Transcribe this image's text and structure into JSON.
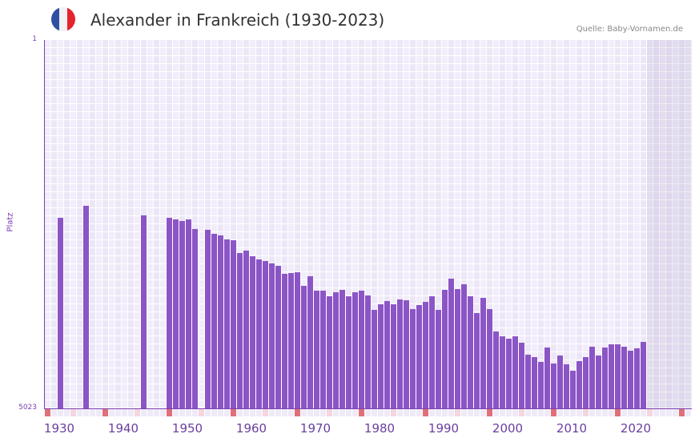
{
  "header": {
    "title": "Alexander in Frankreich (1930-2023)",
    "source": "Quelle: Baby-Vornamen.de",
    "flag_colors": [
      "#2f4fa2",
      "#f1f1f6",
      "#e5232d"
    ]
  },
  "colors": {
    "bar": "#8b55c6",
    "axis": "#7a3fb0",
    "grid_a": "#f1edfa",
    "grid_b": "#ece6f7",
    "strip_decade": "#e07078",
    "strip_mid": "#f4d6de",
    "strip_base": "#efeaf8"
  },
  "chart_data": {
    "type": "bar",
    "title": "Alexander in Frankreich (1930-2023)",
    "xlabel": "",
    "ylabel": "Platz",
    "y_inverted": true,
    "ylim": [
      1,
      5023
    ],
    "y_ticks": [
      "1",
      "5023"
    ],
    "x_ticks": [
      "1930",
      "1940",
      "1950",
      "1960",
      "1970",
      "1980",
      "1990",
      "2000",
      "2010",
      "2020"
    ],
    "x_range": [
      1930,
      2030
    ],
    "shaded_from": 2024,
    "grid": true,
    "legend": null,
    "categories": [
      1930,
      1931,
      1932,
      1933,
      1934,
      1935,
      1936,
      1937,
      1938,
      1939,
      1940,
      1941,
      1942,
      1943,
      1944,
      1945,
      1946,
      1947,
      1948,
      1949,
      1950,
      1951,
      1952,
      1953,
      1954,
      1955,
      1956,
      1957,
      1958,
      1959,
      1960,
      1961,
      1962,
      1963,
      1964,
      1965,
      1966,
      1967,
      1968,
      1969,
      1970,
      1971,
      1972,
      1973,
      1974,
      1975,
      1976,
      1977,
      1978,
      1979,
      1980,
      1981,
      1982,
      1983,
      1984,
      1985,
      1986,
      1987,
      1988,
      1989,
      1990,
      1991,
      1992,
      1993,
      1994,
      1995,
      1996,
      1997,
      1998,
      1999,
      2000,
      2001,
      2002,
      2003,
      2004,
      2005,
      2006,
      2007,
      2008,
      2009,
      2010,
      2011,
      2012,
      2013,
      2014,
      2015,
      2016,
      2017,
      2018,
      2019,
      2020,
      2021,
      2022,
      2023
    ],
    "values": [
      null,
      null,
      2425,
      null,
      null,
      null,
      2261,
      null,
      null,
      null,
      null,
      null,
      null,
      null,
      null,
      2392,
      null,
      null,
      null,
      2425,
      2447,
      2469,
      2447,
      2578,
      null,
      2589,
      2644,
      2665,
      2720,
      2731,
      2906,
      2873,
      2949,
      2993,
      3015,
      3048,
      3080,
      3189,
      3178,
      3168,
      3353,
      3222,
      3419,
      3419,
      3495,
      3441,
      3408,
      3495,
      3441,
      3419,
      3484,
      3681,
      3604,
      3561,
      3604,
      3539,
      3550,
      3670,
      3615,
      3572,
      3495,
      3681,
      3408,
      3255,
      3397,
      3331,
      3495,
      3725,
      3517,
      3670,
      3976,
      4041,
      4074,
      4041,
      4129,
      4292,
      4325,
      4391,
      4194,
      4413,
      4303,
      4424,
      4511,
      4380,
      4325,
      4183,
      4303,
      4194,
      4150,
      4150,
      4183,
      4238,
      4205,
      4118
    ]
  },
  "axis": {
    "y_top_label": "1",
    "y_bottom_label": "5023",
    "y_title": "Platz"
  }
}
